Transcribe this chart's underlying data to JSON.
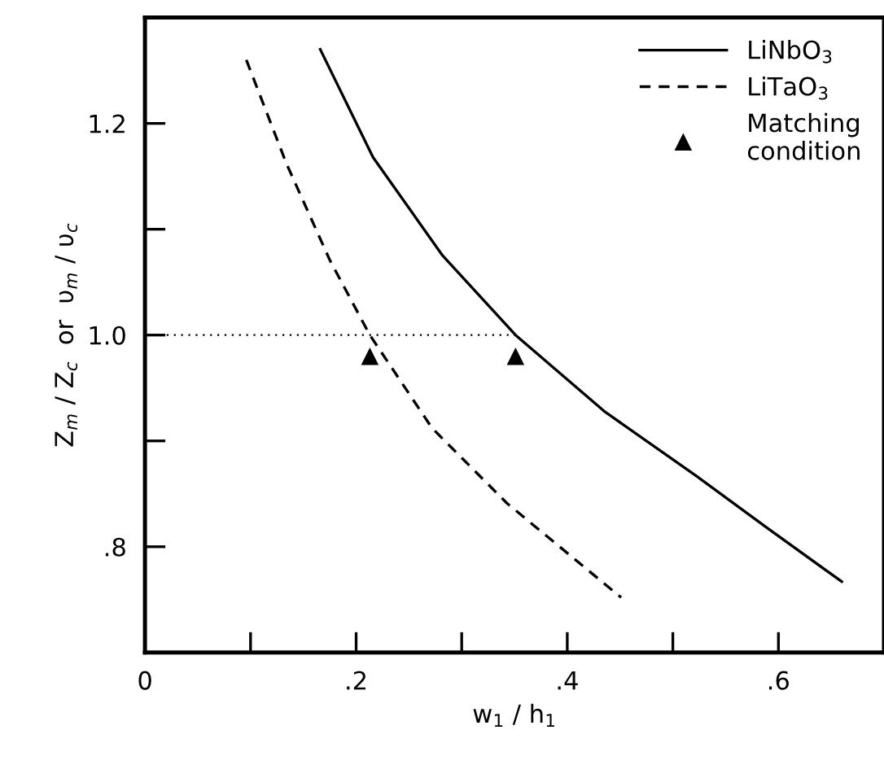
{
  "chart_data": {
    "type": "line",
    "xlabel": "w$_{1}$ / h$_{1}$",
    "ylabel": "Z$_{m}$ / Z$_{c}$  or  υ$_{m}$ / υ$_{c}$",
    "series": [
      {
        "name": "LiNbO$_{3}$",
        "color": "#000000",
        "line_style": "solid",
        "x": [
          0.166,
          0.216,
          0.282,
          0.351,
          0.435,
          0.522,
          0.589,
          0.66
        ],
        "values": [
          1.27,
          1.168,
          1.075,
          1.0,
          0.928,
          0.867,
          0.818,
          0.767
        ]
      },
      {
        "name": "LiTaO$_{3}$",
        "color": "#000000",
        "line_style": "dashed",
        "x": [
          0.096,
          0.134,
          0.175,
          0.213,
          0.272,
          0.343,
          0.451
        ],
        "values": [
          1.26,
          1.162,
          1.071,
          1.0,
          0.912,
          0.841,
          0.752
        ]
      },
      {
        "name": "Matching\ncondition",
        "type": "scatter",
        "marker": "triangle",
        "color": "#000000",
        "x": [
          0.213,
          0.351
        ],
        "values": [
          0.98,
          0.98
        ]
      }
    ],
    "ref_lines": [
      {
        "axis": "y",
        "value": 1.0,
        "line_style": "dotted",
        "color": "#000000"
      }
    ],
    "xlim": [
      0,
      0.7
    ],
    "ylim": [
      0.7,
      1.3
    ],
    "xticks": [
      0,
      {
        "value": 0.1,
        "label": null
      },
      {
        "value": 0.2,
        "label": ".2"
      },
      {
        "value": 0.3,
        "label": null
      },
      {
        "value": 0.4,
        "label": ".4"
      },
      {
        "value": 0.5,
        "label": null
      },
      {
        "value": 0.6,
        "label": ".6"
      }
    ],
    "yticks": [
      {
        "value": 0.8,
        "label": ".8"
      },
      {
        "value": 0.9,
        "label": null
      },
      {
        "value": 1.0,
        "label": "1.0"
      },
      {
        "value": 1.1,
        "label": null
      },
      {
        "value": 1.2,
        "label": "1.2"
      }
    ],
    "grid": false,
    "legend": "top right",
    "marker": "none"
  }
}
